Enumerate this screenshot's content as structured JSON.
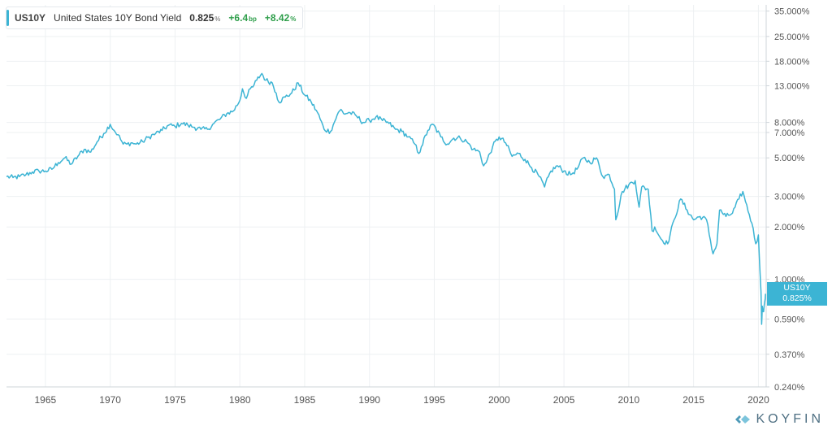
{
  "legend": {
    "symbol": "US10Y",
    "name": "United States 10Y Bond Yield",
    "value": "0.825",
    "value_unit": "%",
    "change_bp": "+6.4",
    "change_bp_unit": "bp",
    "change_pct": "+8.42",
    "change_pct_unit": "%"
  },
  "price_tag": {
    "symbol": "US10Y",
    "value": "0.825%"
  },
  "logo": {
    "text": "KOYFIN"
  },
  "colors": {
    "line": "#3cb4d4",
    "grid": "#edf0f2",
    "axis_text": "#555555",
    "positive": "#2e9e4a"
  },
  "chart_data": {
    "type": "line",
    "title": "United States 10Y Bond Yield",
    "y_scale": "log",
    "ylim": [
      0.24,
      38
    ],
    "xlim": [
      1962.0,
      2020.6
    ],
    "x_ticks": [
      "1965",
      "1970",
      "1975",
      "1980",
      "1985",
      "1990",
      "1995",
      "2000",
      "2005",
      "2010",
      "2015",
      "2020"
    ],
    "y_ticks": [
      {
        "value": 35,
        "label": "35.000%"
      },
      {
        "value": 25,
        "label": "25.000%"
      },
      {
        "value": 18,
        "label": "18.000%"
      },
      {
        "value": 13,
        "label": "13.000%"
      },
      {
        "value": 8,
        "label": "8.000%"
      },
      {
        "value": 7,
        "label": "7.000%"
      },
      {
        "value": 5,
        "label": "5.000%"
      },
      {
        "value": 3,
        "label": "3.000%"
      },
      {
        "value": 2,
        "label": "2.000%"
      },
      {
        "value": 1,
        "label": "1.000%"
      },
      {
        "value": 0.59,
        "label": "0.590%"
      },
      {
        "value": 0.37,
        "label": "0.370%"
      },
      {
        "value": 0.24,
        "label": "0.240%"
      }
    ],
    "grid": true,
    "series": [
      {
        "name": "US10Y",
        "x": [
          1962.0,
          1962.5,
          1963.0,
          1963.5,
          1964.0,
          1964.5,
          1965.0,
          1965.5,
          1966.0,
          1966.5,
          1967.0,
          1967.5,
          1968.0,
          1968.5,
          1969.0,
          1969.5,
          1970.0,
          1970.3,
          1970.6,
          1971.0,
          1971.3,
          1971.6,
          1972.0,
          1972.5,
          1973.0,
          1973.5,
          1974.0,
          1974.5,
          1975.0,
          1975.5,
          1976.0,
          1976.5,
          1977.0,
          1977.5,
          1978.0,
          1978.5,
          1979.0,
          1979.5,
          1980.0,
          1980.2,
          1980.5,
          1980.8,
          1981.0,
          1981.3,
          1981.7,
          1982.0,
          1982.5,
          1982.8,
          1983.0,
          1983.5,
          1984.0,
          1984.5,
          1985.0,
          1985.5,
          1986.0,
          1986.5,
          1987.0,
          1987.5,
          1987.8,
          1988.0,
          1988.5,
          1989.0,
          1989.5,
          1990.0,
          1990.5,
          1991.0,
          1991.5,
          1992.0,
          1992.5,
          1993.0,
          1993.5,
          1993.8,
          1994.0,
          1994.5,
          1994.9,
          1995.5,
          1996.0,
          1996.5,
          1997.0,
          1997.5,
          1998.0,
          1998.5,
          1998.8,
          1999.0,
          1999.5,
          2000.0,
          2000.5,
          2001.0,
          2001.5,
          2002.0,
          2002.5,
          2003.0,
          2003.5,
          2004.0,
          2004.5,
          2005.0,
          2005.5,
          2006.0,
          2006.5,
          2007.0,
          2007.5,
          2008.0,
          2008.5,
          2008.9,
          2009.0,
          2009.5,
          2010.0,
          2010.5,
          2010.8,
          2011.0,
          2011.5,
          2011.8,
          2012.0,
          2012.5,
          2013.0,
          2013.5,
          2014.0,
          2014.5,
          2015.0,
          2015.5,
          2016.0,
          2016.5,
          2016.8,
          2017.0,
          2017.5,
          2018.0,
          2018.5,
          2018.8,
          2019.0,
          2019.5,
          2019.8,
          2020.0,
          2020.2,
          2020.25,
          2020.3,
          2020.4,
          2020.5,
          2020.55
        ],
        "values": [
          3.9,
          3.85,
          3.9,
          4.0,
          4.15,
          4.2,
          4.2,
          4.3,
          4.7,
          5.0,
          4.6,
          5.1,
          5.6,
          5.4,
          6.2,
          6.9,
          7.8,
          7.2,
          6.8,
          6.0,
          6.0,
          6.1,
          6.0,
          6.2,
          6.6,
          6.9,
          7.2,
          7.7,
          7.6,
          7.9,
          7.7,
          7.5,
          7.3,
          7.3,
          7.9,
          8.4,
          9.0,
          9.3,
          10.7,
          12.5,
          11.0,
          12.5,
          12.8,
          14.0,
          15.3,
          14.0,
          13.5,
          11.8,
          10.5,
          11.2,
          11.8,
          13.5,
          11.5,
          10.5,
          9.1,
          7.3,
          7.1,
          8.8,
          9.5,
          9.0,
          9.1,
          8.7,
          8.0,
          8.2,
          8.6,
          8.2,
          7.9,
          7.3,
          7.1,
          6.6,
          6.0,
          5.3,
          5.8,
          7.2,
          7.8,
          6.6,
          6.0,
          6.5,
          6.5,
          6.2,
          5.6,
          5.4,
          4.5,
          4.7,
          5.8,
          6.6,
          6.1,
          5.1,
          5.3,
          4.9,
          4.4,
          4.0,
          3.4,
          4.2,
          4.5,
          4.2,
          4.0,
          4.3,
          5.0,
          4.7,
          5.0,
          3.9,
          4.0,
          3.3,
          2.2,
          3.2,
          3.5,
          3.7,
          2.6,
          3.4,
          3.3,
          1.9,
          2.0,
          1.7,
          1.6,
          2.2,
          2.9,
          2.5,
          2.2,
          2.3,
          2.2,
          1.4,
          1.6,
          2.5,
          2.3,
          2.4,
          2.9,
          3.2,
          2.8,
          2.1,
          1.6,
          1.8,
          0.85,
          0.55,
          0.7,
          0.65,
          0.75,
          0.825
        ]
      }
    ]
  }
}
